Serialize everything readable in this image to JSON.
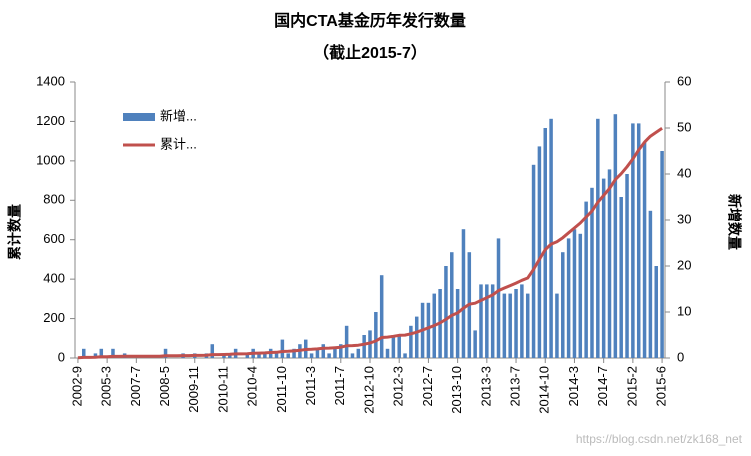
{
  "chart_data": {
    "type": "bar_line",
    "title": "国内CTA基金历年发行数量",
    "subtitle": "（截止2015-7）",
    "y_label": "累计数量",
    "y2_label": "新增数量",
    "watermark": "https://blog.csdn.net/zk168_net",
    "legend": "upper left",
    "categories": [
      "2002-9",
      null,
      null,
      null,
      null,
      "2005-3",
      null,
      null,
      null,
      null,
      "2007-7",
      null,
      null,
      null,
      null,
      "2008-5",
      null,
      null,
      null,
      null,
      "2009-11",
      null,
      null,
      null,
      null,
      "2010-11",
      null,
      null,
      null,
      null,
      "2010-4",
      null,
      null,
      null,
      null,
      "2011-10",
      null,
      null,
      null,
      null,
      "2011-3",
      null,
      null,
      null,
      null,
      "2011-7",
      null,
      null,
      null,
      null,
      "2012-10",
      null,
      null,
      null,
      null,
      "2012-3",
      null,
      null,
      null,
      null,
      "2012-7",
      null,
      null,
      null,
      null,
      "2013-10",
      null,
      null,
      null,
      null,
      "2013-3",
      null,
      null,
      null,
      null,
      "2013-7",
      null,
      null,
      null,
      null,
      "2014-10",
      null,
      null,
      null,
      null,
      "2014-3",
      null,
      null,
      null,
      null,
      "2014-7",
      null,
      null,
      null,
      null,
      "2015-2",
      null,
      null,
      null,
      null,
      "2015-6"
    ],
    "series": [
      {
        "name": "新增...",
        "type": "bar",
        "axis": "y2",
        "color": "#4f81bd",
        "values": [
          0,
          2,
          0,
          1,
          2,
          0,
          2,
          0,
          1,
          0,
          0,
          0,
          0,
          0,
          0,
          2,
          0,
          0,
          1,
          0,
          1,
          0,
          1,
          3,
          0,
          1,
          1,
          2,
          0,
          1,
          2,
          1,
          1,
          2,
          1,
          4,
          1,
          2,
          3,
          4,
          1,
          2,
          3,
          1,
          2,
          3,
          7,
          1,
          2,
          5,
          6,
          10,
          18,
          2,
          5,
          5,
          1,
          7,
          9,
          12,
          12,
          14,
          15,
          20,
          23,
          15,
          28,
          23,
          6,
          16,
          16,
          16,
          26,
          14,
          14,
          15,
          16,
          14,
          42,
          46,
          50,
          52,
          14,
          23,
          26,
          28,
          27,
          34,
          37,
          52,
          39,
          41,
          53,
          35,
          40,
          51,
          51,
          47,
          32,
          20,
          45
        ]
      },
      {
        "name": "累计...",
        "type": "line",
        "axis": "y",
        "color": "#c0504d",
        "values": [
          1,
          3,
          3,
          4,
          6,
          6,
          8,
          8,
          9,
          9,
          9,
          9,
          9,
          9,
          9,
          11,
          11,
          11,
          12,
          12,
          13,
          13,
          14,
          17,
          17,
          18,
          19,
          21,
          21,
          22,
          24,
          25,
          26,
          28,
          29,
          33,
          34,
          36,
          39,
          43,
          44,
          46,
          49,
          50,
          52,
          55,
          62,
          63,
          65,
          70,
          76,
          86,
          104,
          106,
          110,
          115,
          116,
          123,
          131,
          142,
          153,
          165,
          178,
          196,
          216,
          229,
          253,
          273,
          278,
          292,
          306,
          320,
          342,
          355,
          367,
          380,
          394,
          406,
          450,
          500,
          550,
          578,
          590,
          610,
          635,
          660,
          685,
          715,
          745,
          790,
          825,
          860,
          905,
          935,
          970,
          1010,
          1055,
          1095,
          1125,
          1145,
          1165
        ]
      }
    ],
    "ylim": [
      0,
      1400
    ],
    "yticks": [
      0,
      200,
      400,
      600,
      800,
      1000,
      1200,
      1400
    ],
    "y2lim": [
      0,
      60
    ],
    "y2ticks": [
      0,
      10,
      20,
      30,
      40,
      50,
      60
    ],
    "grid": false
  }
}
